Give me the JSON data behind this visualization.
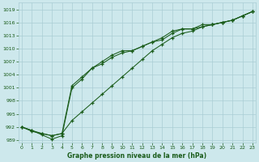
{
  "title": "Graphe pression niveau de la mer (hPa)",
  "background_color": "#cde8ec",
  "grid_color": "#aacdd4",
  "line_color": "#1a5c1a",
  "x_min": 0,
  "x_max": 23,
  "y_min": 988,
  "y_max": 1020,
  "y_ticks": [
    989,
    992,
    995,
    998,
    1001,
    1004,
    1007,
    1010,
    1013,
    1016,
    1019
  ],
  "x_ticks": [
    0,
    1,
    2,
    3,
    4,
    5,
    6,
    7,
    8,
    9,
    10,
    11,
    12,
    13,
    14,
    15,
    16,
    17,
    18,
    19,
    20,
    21,
    22,
    23
  ],
  "series1": [
    992.0,
    991.2,
    990.5,
    990.0,
    990.5,
    1001.5,
    1003.5,
    1005.5,
    1007.0,
    1008.5,
    1009.5,
    1009.5,
    1010.5,
    1011.5,
    1012.5,
    1014.0,
    1014.5,
    1014.5,
    1015.0,
    1015.5,
    1016.0,
    1016.5,
    1017.5,
    1018.5
  ],
  "series2": [
    992.0,
    991.2,
    990.2,
    989.2,
    990.0,
    1001.0,
    1003.0,
    1005.5,
    1006.5,
    1008.0,
    1009.0,
    1009.5,
    1010.5,
    1011.5,
    1012.0,
    1013.5,
    1014.5,
    1014.5,
    1015.5,
    1015.5,
    1016.0,
    1016.5,
    1017.5,
    1018.5
  ],
  "series3": [
    992.0,
    991.0,
    990.5,
    990.0,
    990.5,
    993.5,
    995.5,
    997.5,
    999.5,
    1001.5,
    1003.5,
    1005.5,
    1007.5,
    1009.5,
    1011.0,
    1012.5,
    1013.5,
    1014.0,
    1015.0,
    1015.5,
    1016.0,
    1016.5,
    1017.5,
    1018.5
  ]
}
